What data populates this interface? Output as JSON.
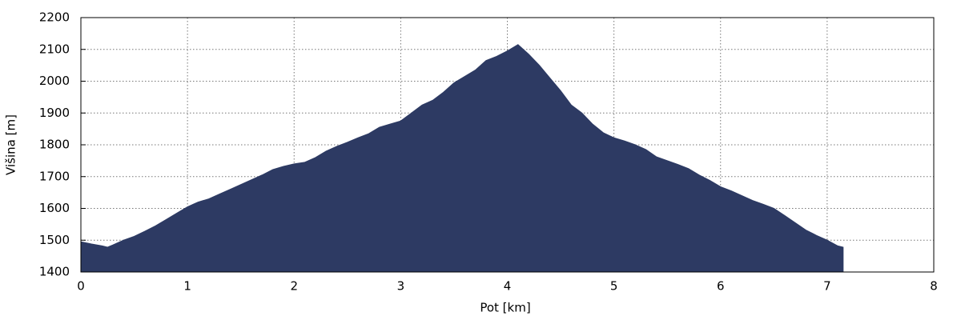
{
  "chart_data": {
    "type": "area",
    "x_label": "Pot [km]",
    "y_label": "Višina [m]",
    "color": "#2d3a63",
    "grid": true,
    "xlim": [
      0,
      8
    ],
    "xticks": [
      0,
      1,
      2,
      3,
      4,
      5,
      6,
      7,
      8
    ],
    "ylim": [
      1400,
      2200
    ],
    "yticks": [
      1400,
      1500,
      1600,
      1700,
      1800,
      1900,
      2000,
      2100,
      2200
    ],
    "x": [
      0,
      0.1,
      0.2,
      0.25,
      0.3,
      0.4,
      0.5,
      0.6,
      0.7,
      0.8,
      0.9,
      1.0,
      1.1,
      1.2,
      1.3,
      1.4,
      1.5,
      1.6,
      1.7,
      1.8,
      1.9,
      2.0,
      2.1,
      2.2,
      2.3,
      2.4,
      2.5,
      2.6,
      2.7,
      2.8,
      2.9,
      3.0,
      3.1,
      3.2,
      3.3,
      3.4,
      3.5,
      3.6,
      3.7,
      3.8,
      3.9,
      4.0,
      4.1,
      4.2,
      4.3,
      4.4,
      4.5,
      4.6,
      4.7,
      4.8,
      4.9,
      5.0,
      5.1,
      5.2,
      5.3,
      5.4,
      5.5,
      5.6,
      5.7,
      5.8,
      5.9,
      6.0,
      6.1,
      6.2,
      6.3,
      6.4,
      6.5,
      6.6,
      6.7,
      6.8,
      6.9,
      7.0,
      7.1,
      7.15
    ],
    "values": [
      1495,
      1488,
      1482,
      1478,
      1485,
      1500,
      1512,
      1528,
      1545,
      1565,
      1585,
      1605,
      1620,
      1630,
      1645,
      1660,
      1675,
      1690,
      1705,
      1722,
      1732,
      1740,
      1745,
      1760,
      1780,
      1795,
      1808,
      1822,
      1835,
      1855,
      1865,
      1875,
      1900,
      1925,
      1940,
      1965,
      1995,
      2015,
      2035,
      2065,
      2078,
      2095,
      2115,
      2085,
      2050,
      2010,
      1970,
      1925,
      1900,
      1865,
      1838,
      1822,
      1812,
      1800,
      1785,
      1762,
      1750,
      1738,
      1725,
      1705,
      1688,
      1668,
      1655,
      1640,
      1625,
      1613,
      1600,
      1578,
      1555,
      1532,
      1515,
      1500,
      1482,
      1478
    ]
  }
}
